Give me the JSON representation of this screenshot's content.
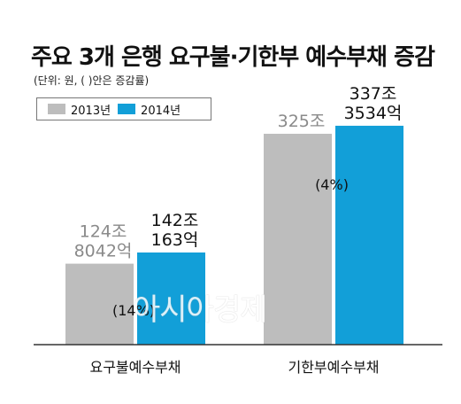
{
  "title": "주요 3개 은행 요구불·기한부 예수부채 증감",
  "subtitle": "(단위: 원, ( )안은 증감률)",
  "legend": {
    "items": [
      {
        "label": "2013년",
        "color": "#bdbdbd"
      },
      {
        "label": "2014년",
        "color": "#129fd8"
      }
    ]
  },
  "watermark": "아시아경제",
  "chart_data": {
    "type": "bar",
    "categories": [
      "요구불예수부채",
      "기한부예수부채"
    ],
    "series": [
      {
        "name": "2013년",
        "color": "#bdbdbd",
        "values": [
          124.8042,
          325.0
        ],
        "labels": [
          [
            "124조",
            "8042억"
          ],
          [
            "325조"
          ]
        ]
      },
      {
        "name": "2014년",
        "color": "#129fd8",
        "values": [
          142.0163,
          337.3534
        ],
        "labels": [
          [
            "142조",
            "163억"
          ],
          [
            "337조",
            "3534억"
          ]
        ]
      }
    ],
    "changes": [
      "(14%)",
      "(4%)"
    ],
    "ylim": [
      0,
      340
    ],
    "xlabel": "",
    "ylabel": "",
    "grid": false,
    "legend_position": "top-left"
  }
}
